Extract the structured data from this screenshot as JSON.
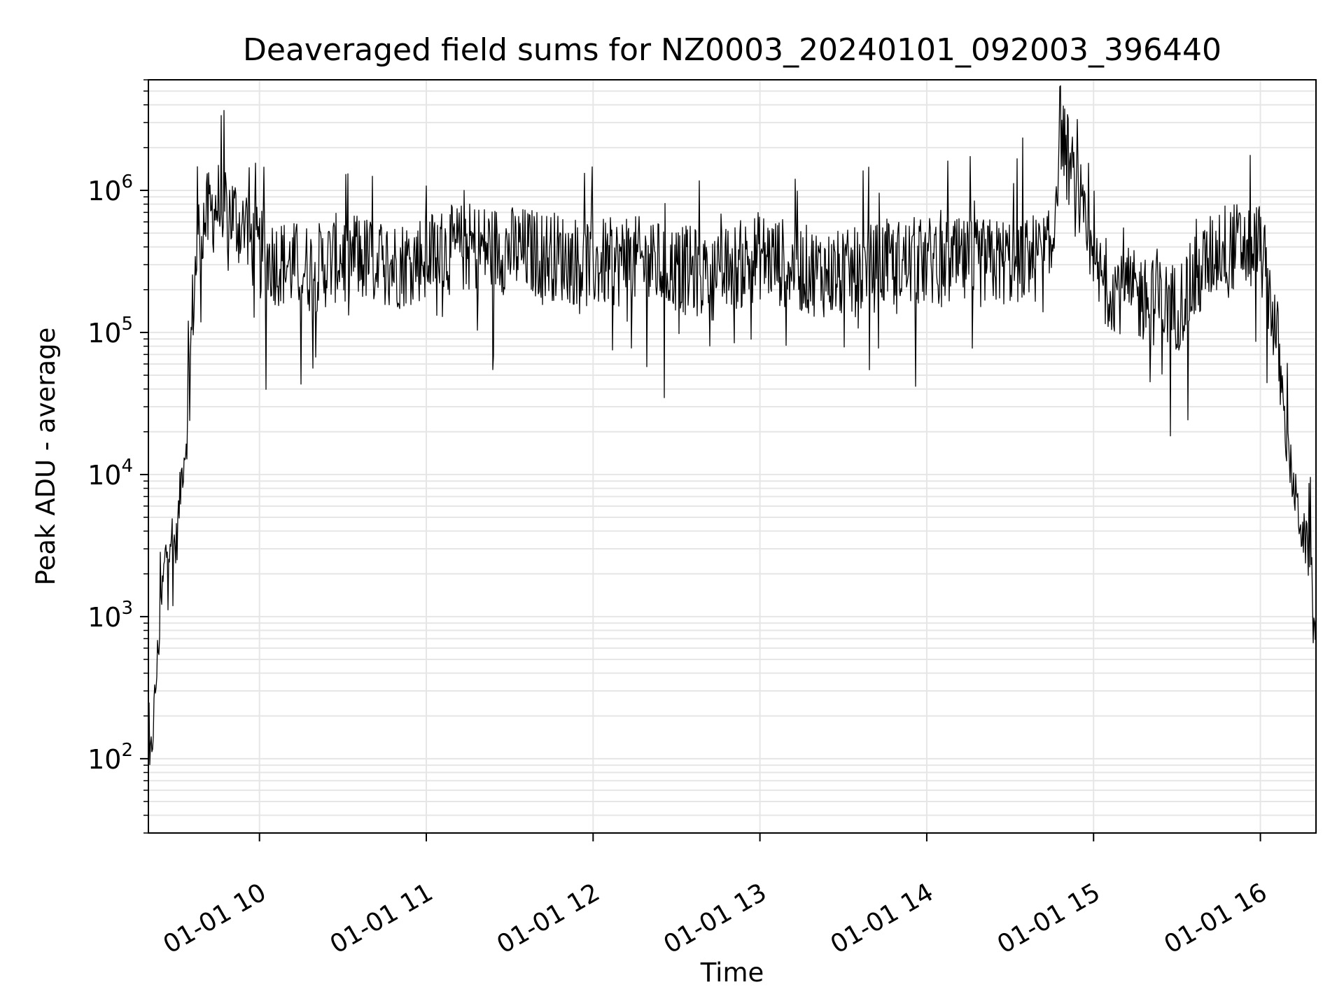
{
  "chart_data": {
    "type": "line",
    "title": "Deaveraged field sums for NZ0003_20240101_092003_396440",
    "xlabel": "Time",
    "ylabel": "Peak ADU - average",
    "yscale": "log",
    "ylim": [
      30,
      6000000
    ],
    "xlim": [
      "2024-01-01 09:20:03",
      "2024-01-01 16:20:00"
    ],
    "grid": true,
    "line_color": "#000000",
    "grid_color": "#e6e6e6",
    "x_ticks": [
      {
        "t": "2024-01-01 10:00",
        "label": "01-01 10"
      },
      {
        "t": "2024-01-01 11:00",
        "label": "01-01 11"
      },
      {
        "t": "2024-01-01 12:00",
        "label": "01-01 12"
      },
      {
        "t": "2024-01-01 13:00",
        "label": "01-01 13"
      },
      {
        "t": "2024-01-01 14:00",
        "label": "01-01 14"
      },
      {
        "t": "2024-01-01 15:00",
        "label": "01-01 15"
      },
      {
        "t": "2024-01-01 16:00",
        "label": "01-01 16"
      }
    ],
    "y_ticks": [
      {
        "value": 100,
        "base": "10",
        "exp": "2"
      },
      {
        "value": 1000,
        "base": "10",
        "exp": "3"
      },
      {
        "value": 10000,
        "base": "10",
        "exp": "4"
      },
      {
        "value": 100000,
        "base": "10",
        "exp": "5"
      },
      {
        "value": 1000000,
        "base": "10",
        "exp": "6"
      }
    ],
    "series": [
      {
        "x": [
          "2024-01-01 09:20",
          "2024-01-01 09:22",
          "2024-01-01 09:24",
          "2024-01-01 09:26",
          "2024-01-01 09:28",
          "2024-01-01 09:30",
          "2024-01-01 09:32",
          "2024-01-01 09:34",
          "2024-01-01 09:36",
          "2024-01-01 09:38",
          "2024-01-01 09:40",
          "2024-01-01 09:45",
          "2024-01-01 09:50",
          "2024-01-01 09:55",
          "2024-01-01 10:00",
          "2024-01-01 10:10",
          "2024-01-01 10:20",
          "2024-01-01 10:30",
          "2024-01-01 10:40",
          "2024-01-01 10:50",
          "2024-01-01 11:00",
          "2024-01-01 11:15",
          "2024-01-01 11:30",
          "2024-01-01 11:45",
          "2024-01-01 12:00",
          "2024-01-01 12:15",
          "2024-01-01 12:30",
          "2024-01-01 12:45",
          "2024-01-01 13:00",
          "2024-01-01 13:15",
          "2024-01-01 13:30",
          "2024-01-01 13:45",
          "2024-01-01 14:00",
          "2024-01-01 14:15",
          "2024-01-01 14:30",
          "2024-01-01 14:45",
          "2024-01-01 14:48",
          "2024-01-01 15:00",
          "2024-01-01 15:15",
          "2024-01-01 15:30",
          "2024-01-01 15:45",
          "2024-01-01 16:00",
          "2024-01-01 16:03",
          "2024-01-01 16:06",
          "2024-01-01 16:09",
          "2024-01-01 16:12",
          "2024-01-01 16:15",
          "2024-01-01 16:18",
          "2024-01-01 16:20"
        ],
        "y": [
          55,
          200,
          800,
          2500,
          4000,
          3000,
          10000,
          20000,
          150000,
          500000,
          600000,
          800000,
          700000,
          500000,
          350000,
          300000,
          280000,
          350000,
          320000,
          300000,
          350000,
          400000,
          380000,
          350000,
          300000,
          320000,
          280000,
          250000,
          350000,
          280000,
          250000,
          300000,
          320000,
          300000,
          320000,
          350000,
          3000000,
          250000,
          180000,
          150000,
          400000,
          400000,
          200000,
          90000,
          20000,
          8000,
          4000,
          2500,
          900
        ]
      }
    ]
  }
}
